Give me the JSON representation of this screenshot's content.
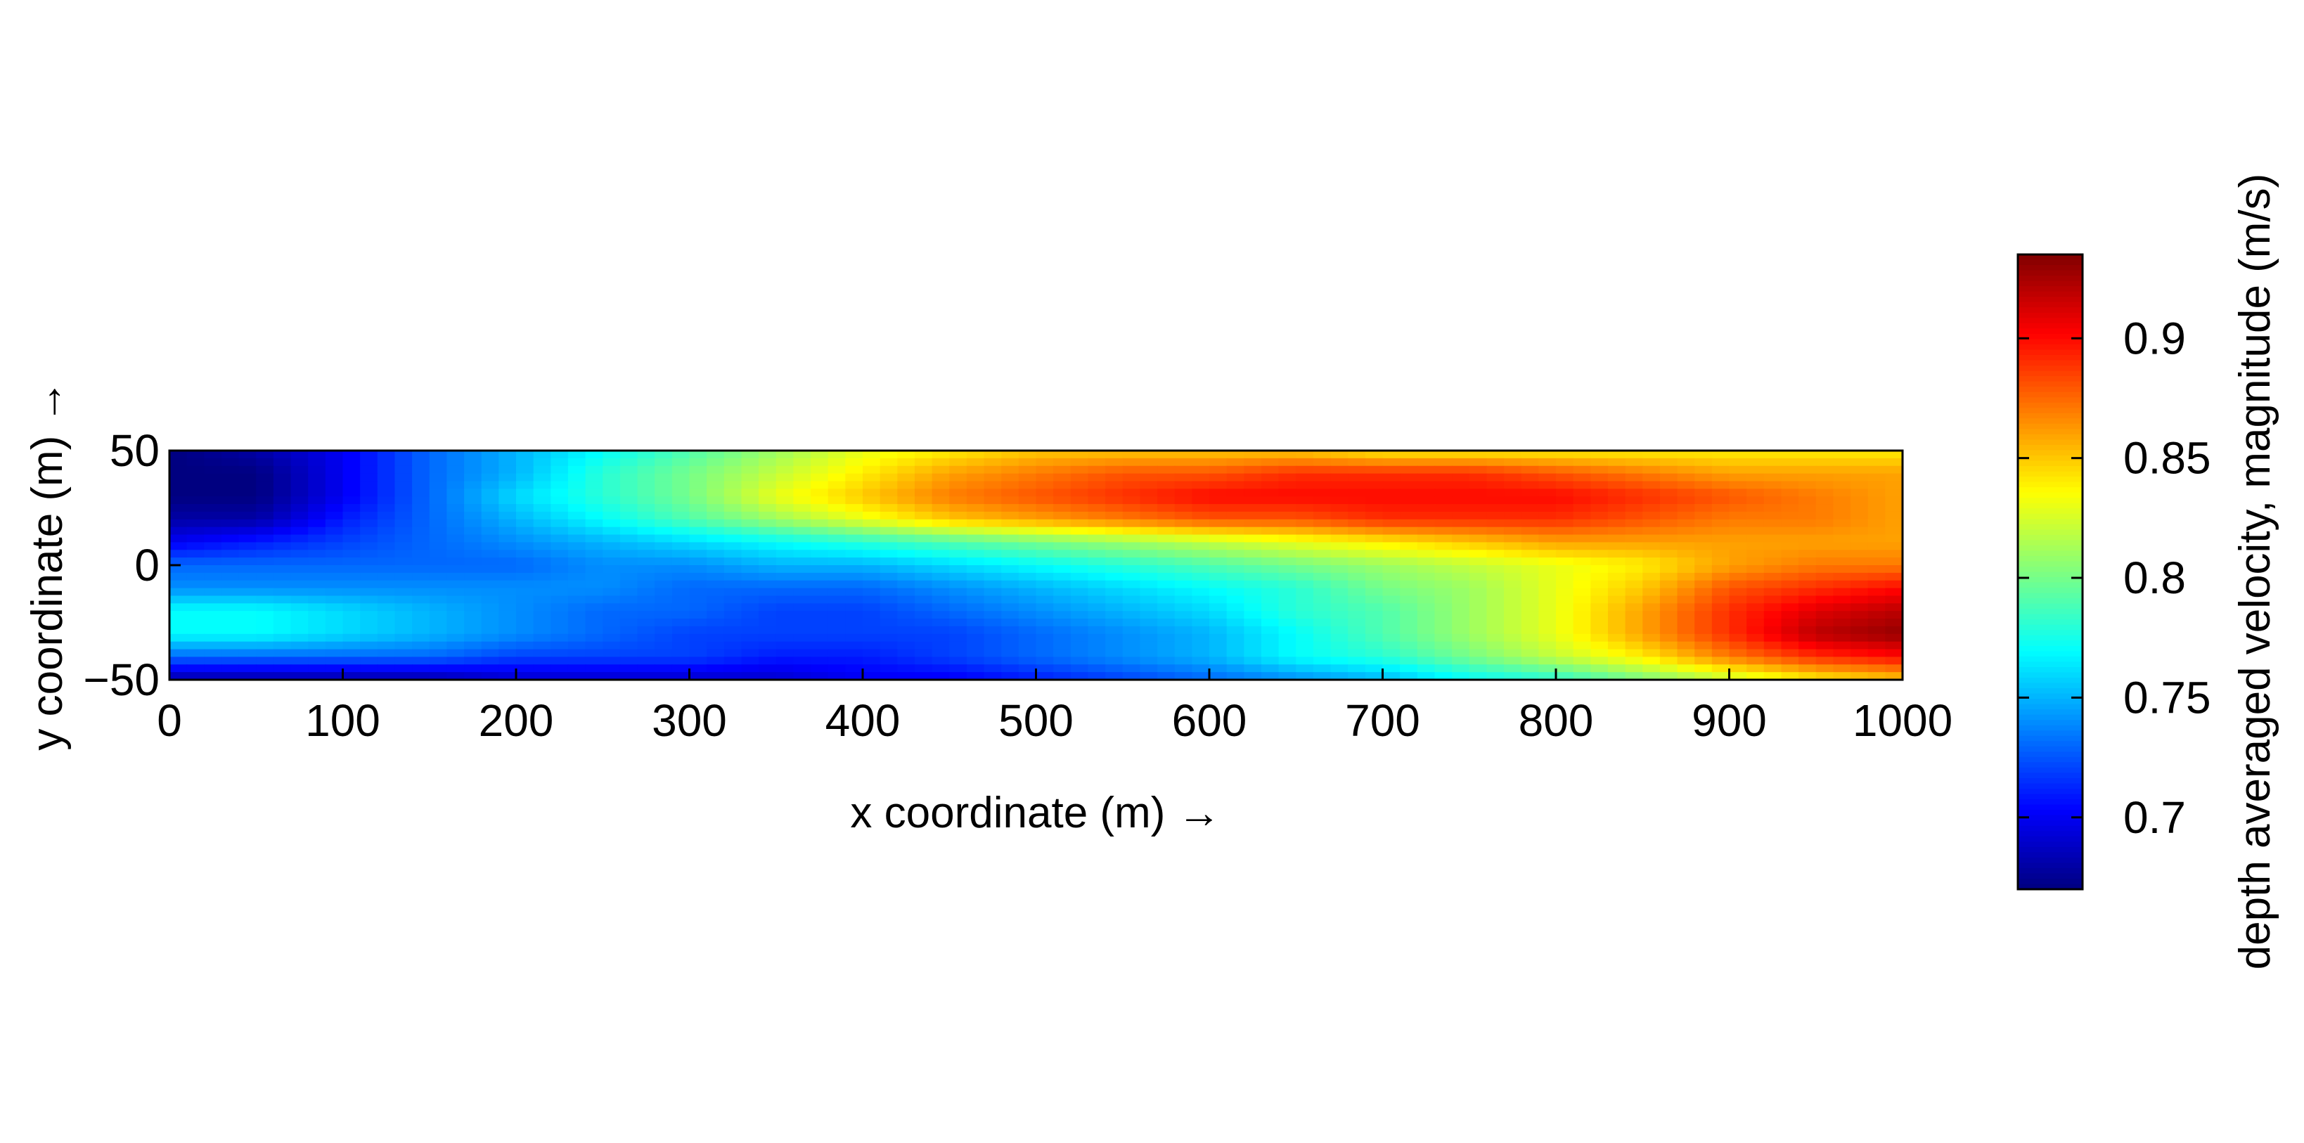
{
  "chart_data": {
    "type": "heatmap",
    "title": "",
    "xlabel": "x coordinate (m) →",
    "ylabel": "y coordinate (m) →",
    "xlim": [
      0,
      1000
    ],
    "ylim": [
      -50,
      50
    ],
    "x_ticks": [
      "0",
      "100",
      "200",
      "300",
      "400",
      "500",
      "600",
      "700",
      "800",
      "900",
      "1000"
    ],
    "y_ticks": [
      "50",
      "0",
      "−50"
    ],
    "grid": false,
    "colorscale": "jet",
    "colorbar": {
      "label": "depth averaged velocity, magnitude (m/s)",
      "range": [
        0.67,
        0.935
      ],
      "ticks": [
        "0.7",
        "0.75",
        "0.8",
        "0.85",
        "0.9"
      ],
      "tick_values": [
        0.7,
        0.75,
        0.8,
        0.85,
        0.9
      ],
      "placement": "right"
    },
    "x": [
      0,
      50,
      100,
      150,
      200,
      250,
      300,
      350,
      400,
      450,
      500,
      550,
      600,
      650,
      700,
      750,
      800,
      850,
      900,
      950,
      1000
    ],
    "y": [
      50,
      40,
      30,
      20,
      10,
      0,
      -10,
      -20,
      -30,
      -40,
      -50
    ],
    "z": [
      [
        0.67,
        0.68,
        0.7,
        0.73,
        0.75,
        0.77,
        0.79,
        0.81,
        0.83,
        0.84,
        0.85,
        0.85,
        0.85,
        0.85,
        0.84,
        0.84,
        0.84,
        0.84,
        0.84,
        0.84,
        0.84
      ],
      [
        0.67,
        0.67,
        0.7,
        0.73,
        0.75,
        0.78,
        0.8,
        0.82,
        0.84,
        0.86,
        0.87,
        0.88,
        0.88,
        0.89,
        0.89,
        0.89,
        0.88,
        0.87,
        0.86,
        0.86,
        0.86
      ],
      [
        0.67,
        0.67,
        0.7,
        0.73,
        0.76,
        0.78,
        0.8,
        0.83,
        0.85,
        0.87,
        0.88,
        0.89,
        0.9,
        0.9,
        0.9,
        0.9,
        0.9,
        0.89,
        0.88,
        0.87,
        0.86
      ],
      [
        0.68,
        0.68,
        0.71,
        0.73,
        0.75,
        0.77,
        0.79,
        0.81,
        0.83,
        0.85,
        0.86,
        0.87,
        0.88,
        0.88,
        0.89,
        0.89,
        0.89,
        0.88,
        0.87,
        0.87,
        0.86
      ],
      [
        0.7,
        0.71,
        0.72,
        0.73,
        0.74,
        0.75,
        0.76,
        0.77,
        0.78,
        0.79,
        0.8,
        0.81,
        0.82,
        0.83,
        0.84,
        0.85,
        0.86,
        0.86,
        0.86,
        0.86,
        0.86
      ],
      [
        0.73,
        0.73,
        0.73,
        0.73,
        0.73,
        0.74,
        0.74,
        0.75,
        0.75,
        0.76,
        0.77,
        0.78,
        0.79,
        0.8,
        0.81,
        0.82,
        0.83,
        0.84,
        0.86,
        0.87,
        0.87
      ],
      [
        0.74,
        0.74,
        0.74,
        0.74,
        0.74,
        0.74,
        0.73,
        0.73,
        0.73,
        0.74,
        0.75,
        0.76,
        0.77,
        0.78,
        0.8,
        0.81,
        0.83,
        0.85,
        0.88,
        0.89,
        0.9
      ],
      [
        0.77,
        0.77,
        0.76,
        0.75,
        0.74,
        0.73,
        0.73,
        0.72,
        0.72,
        0.73,
        0.74,
        0.75,
        0.76,
        0.78,
        0.79,
        0.81,
        0.83,
        0.86,
        0.89,
        0.91,
        0.92
      ],
      [
        0.77,
        0.77,
        0.76,
        0.75,
        0.74,
        0.73,
        0.72,
        0.72,
        0.72,
        0.72,
        0.73,
        0.74,
        0.75,
        0.77,
        0.79,
        0.81,
        0.83,
        0.86,
        0.89,
        0.92,
        0.93
      ],
      [
        0.73,
        0.73,
        0.73,
        0.73,
        0.72,
        0.72,
        0.72,
        0.71,
        0.71,
        0.72,
        0.73,
        0.74,
        0.75,
        0.77,
        0.78,
        0.8,
        0.82,
        0.84,
        0.87,
        0.89,
        0.9
      ],
      [
        0.68,
        0.68,
        0.68,
        0.68,
        0.69,
        0.69,
        0.69,
        0.69,
        0.7,
        0.7,
        0.71,
        0.72,
        0.73,
        0.74,
        0.75,
        0.77,
        0.78,
        0.8,
        0.82,
        0.84,
        0.85
      ]
    ]
  }
}
